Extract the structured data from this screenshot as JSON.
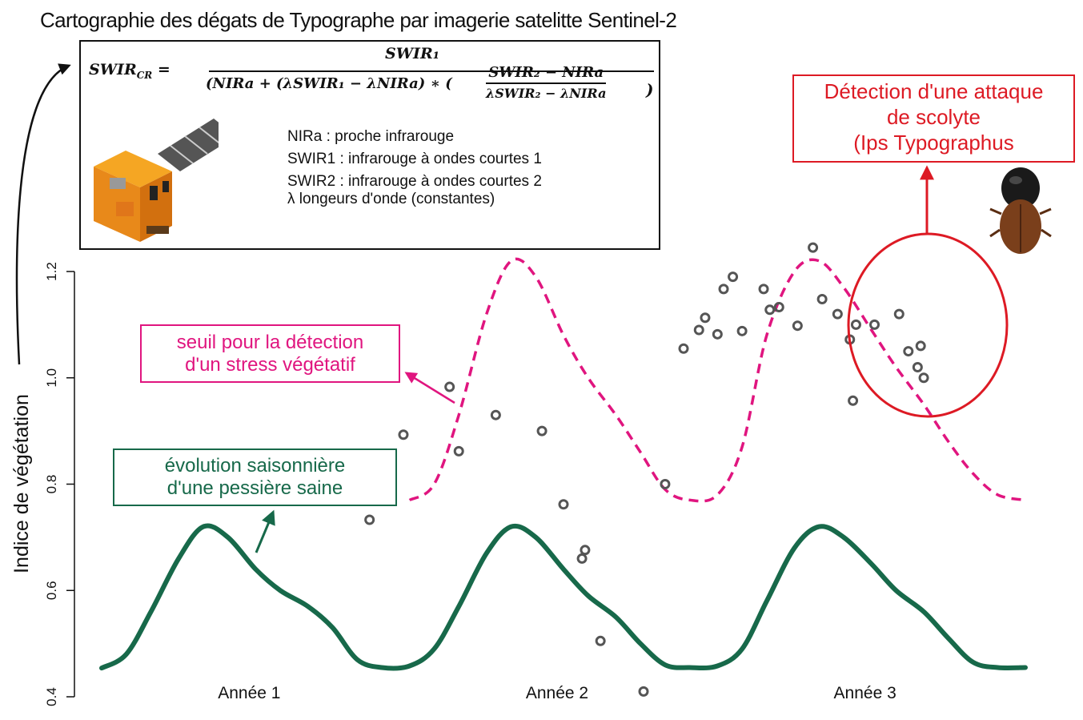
{
  "title": "Cartographie des dégats de Typographe par imagerie satelitte Sentinel-2",
  "formula": {
    "lhs": "SWIR",
    "lhs_sub": "CR",
    "numerator": "SWIR₁",
    "denominator": "(NIRa + (λSWIR₁ − λNIRa) ∗ (",
    "inner_numerator": "SWIR₂ − NIRa",
    "inner_denominator": "λSWIR₂ − λNIRa",
    "closing": ")"
  },
  "legend_lines": [
    "NIRa : proche infrarouge",
    "SWIR1 : infrarouge à ondes courtes 1",
    "SWIR2 : infrarouge à ondes courtes 2",
    "λ longeurs d'onde (constantes)"
  ],
  "callouts": {
    "seuil": [
      "seuil pour la détection",
      "d'un stress végétatif"
    ],
    "saine": [
      "évolution saisonnière",
      "d'une pessière saine"
    ],
    "scolyte": [
      "Détection d'une attaque",
      "de scolyte",
      "(Ips Typographus"
    ]
  },
  "colors": {
    "healthy": "#17694a",
    "threshold": "#e0157f",
    "detection": "#dd1a24",
    "points": "#555555",
    "axis": "#111111"
  },
  "chart_data": {
    "type": "line",
    "ylabel": "Indice de végétation",
    "xlabel": "",
    "ylim": [
      0.4,
      1.2
    ],
    "yticks": [
      "0.4",
      "0.6",
      "0.8",
      "1.0",
      "1.2"
    ],
    "year_labels": [
      "Année 1",
      "Année 2",
      "Année 3"
    ],
    "series": [
      {
        "style": "solid",
        "x": [
          0.0,
          0.08,
          0.16,
          0.25,
          0.33,
          0.41,
          0.5,
          0.58,
          0.67,
          0.75,
          0.83,
          0.91,
          1.0,
          1.08,
          1.16,
          1.25,
          1.33,
          1.41,
          1.5,
          1.58,
          1.67,
          1.75,
          1.83,
          1.91,
          2.0,
          2.08,
          2.16,
          2.25,
          2.33,
          2.41,
          2.5,
          2.58,
          2.67,
          2.75,
          2.83,
          2.91,
          3.0
        ],
        "values": [
          0.454,
          0.48,
          0.56,
          0.66,
          0.72,
          0.7,
          0.64,
          0.6,
          0.57,
          0.53,
          0.47,
          0.455,
          0.458,
          0.49,
          0.57,
          0.67,
          0.72,
          0.7,
          0.64,
          0.59,
          0.55,
          0.5,
          0.46,
          0.455,
          0.458,
          0.49,
          0.58,
          0.68,
          0.72,
          0.7,
          0.65,
          0.6,
          0.56,
          0.51,
          0.465,
          0.455,
          0.455
        ]
      },
      {
        "style": "dashed",
        "x": [
          1.0,
          1.08,
          1.16,
          1.25,
          1.33,
          1.41,
          1.5,
          1.58,
          1.67,
          1.75,
          1.83,
          1.91,
          2.0,
          2.08,
          2.16,
          2.25,
          2.33,
          2.41,
          2.5,
          2.58,
          2.67,
          2.75,
          2.83,
          2.91,
          3.0
        ],
        "values": [
          0.77,
          0.8,
          0.93,
          1.12,
          1.22,
          1.19,
          1.08,
          1.0,
          0.93,
          0.86,
          0.79,
          0.77,
          0.78,
          0.87,
          1.08,
          1.2,
          1.22,
          1.17,
          1.09,
          1.02,
          0.95,
          0.88,
          0.82,
          0.78,
          0.77
        ]
      }
    ],
    "points": {
      "x": [
        0.87,
        0.98,
        1.13,
        1.16,
        1.28,
        1.43,
        1.5,
        1.56,
        1.57,
        1.62,
        1.76,
        1.83,
        1.89,
        1.94,
        1.96,
        2.0,
        2.02,
        2.05,
        2.08,
        2.15,
        2.17,
        2.2,
        2.26,
        2.31,
        2.34,
        2.39,
        2.43,
        2.44,
        2.45,
        2.51,
        2.59,
        2.62,
        2.65,
        2.66,
        2.67
      ],
      "values": [
        0.733,
        0.893,
        0.983,
        0.862,
        0.93,
        0.9,
        0.762,
        0.66,
        0.676,
        0.505,
        0.41,
        0.8,
        1.055,
        1.09,
        1.113,
        1.082,
        1.167,
        1.19,
        1.088,
        1.167,
        1.128,
        1.133,
        1.098,
        1.245,
        1.148,
        1.12,
        1.072,
        0.957,
        1.1,
        1.1,
        1.12,
        1.05,
        1.02,
        1.06,
        1.0
      ]
    }
  }
}
